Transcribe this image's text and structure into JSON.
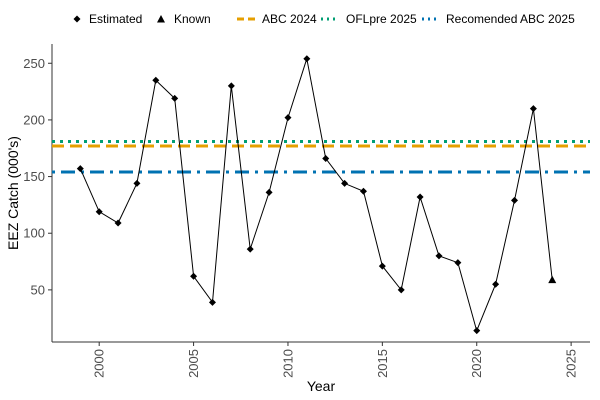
{
  "chart_data": {
    "type": "line",
    "xlabel": "Year",
    "ylabel": "EEZ Catch (000's)",
    "xlim": [
      1997.5,
      2026
    ],
    "ylim": [
      4,
      267
    ],
    "grid": false,
    "legend_position": "top",
    "x_ticks": [
      2000,
      2005,
      2010,
      2015,
      2020,
      2025
    ],
    "x_tick_labels": [
      "2000",
      "2005",
      "2010",
      "2015",
      "2020",
      "2025"
    ],
    "y_ticks": [
      50,
      100,
      150,
      200,
      250
    ],
    "y_tick_labels": [
      "50",
      "100",
      "150",
      "200",
      "250"
    ],
    "series": [
      {
        "name": "Estimated",
        "marker": "diamond",
        "x": [
          1999,
          2000,
          2001,
          2002,
          2003,
          2004,
          2005,
          2006,
          2007,
          2008,
          2009,
          2010,
          2011,
          2012,
          2013,
          2014,
          2015,
          2016,
          2017,
          2018,
          2019,
          2020,
          2021,
          2022,
          2023
        ],
        "y": [
          157,
          119,
          109,
          144,
          235,
          219,
          62,
          39,
          230,
          86,
          136,
          202,
          254,
          166,
          144,
          137,
          71,
          50,
          132,
          80,
          74,
          14,
          55,
          129,
          210
        ]
      },
      {
        "name": "Known",
        "marker": "triangle",
        "x": [
          2024
        ],
        "y": [
          59
        ]
      }
    ],
    "reference_lines": [
      {
        "name": "ABC 2024",
        "value": 177,
        "color": "#E69F00",
        "dash": "dashed"
      },
      {
        "name": "OFLpre 2025",
        "value": 181,
        "color": "#009E73",
        "dash": "dotted"
      },
      {
        "name": "Recomended ABC 2025",
        "value": 154,
        "color": "#0072B2",
        "dash": "dotdash"
      }
    ],
    "legend_labels": {
      "estimated": "Estimated",
      "known": "Known",
      "abc2024": "ABC 2024",
      "oflpre2025": "OFLpre 2025",
      "recabc2025": "Recomended ABC 2025"
    }
  }
}
